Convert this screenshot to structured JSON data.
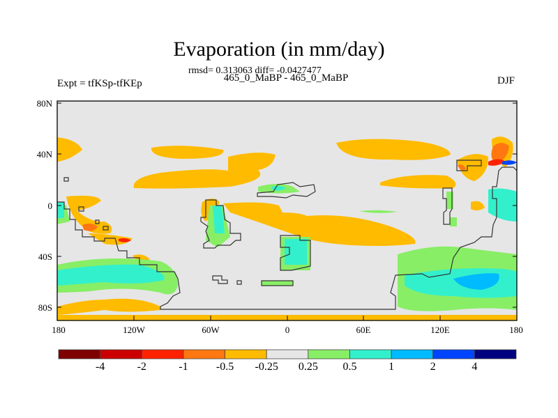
{
  "title": "Evaporation (in mm/day)",
  "stats": "rmsd= 0.313063 diff= -0.0427477",
  "subtitle": "465_0_MaBP - 465_0_MaBP",
  "left_label": "Expt = tfKSp-tfKEp",
  "right_label": "DJF",
  "lat_labels": [
    "80N",
    "40N",
    "0",
    "40S",
    "80S"
  ],
  "lon_labels": [
    "180",
    "120W",
    "60W",
    "0",
    "60E",
    "120E",
    "180"
  ],
  "colorbar": {
    "levels": [
      "-4",
      "-2",
      "-1",
      "-0.5",
      "-0.25",
      "0.25",
      "0.5",
      "1",
      "2",
      "4"
    ],
    "colors": [
      "#7f0000",
      "#cc0000",
      "#ff2200",
      "#ff7711",
      "#ffbb00",
      "#e6e6e6",
      "#88ee66",
      "#33f0cc",
      "#00bbff",
      "#0044ff",
      "#000080"
    ]
  }
}
